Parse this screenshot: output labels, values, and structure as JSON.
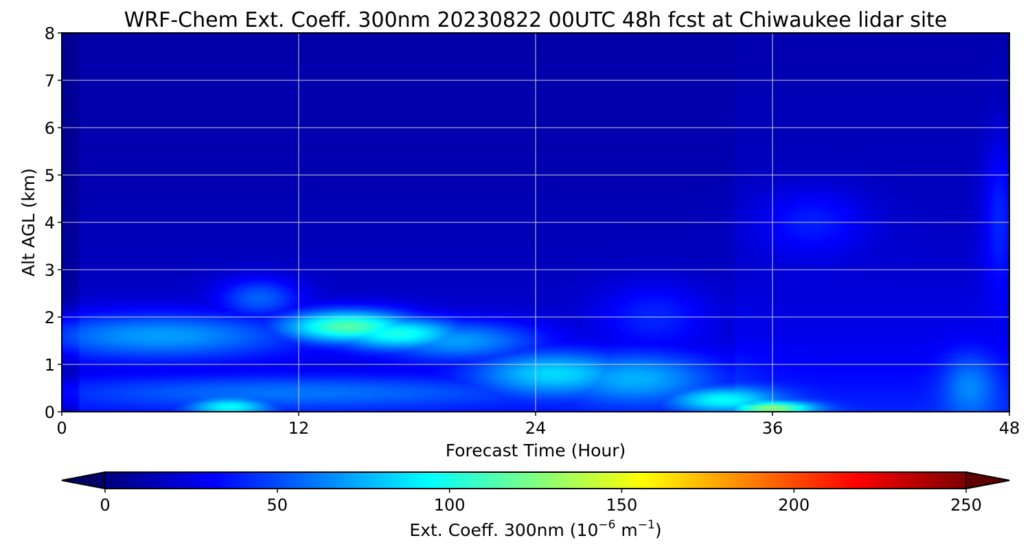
{
  "chart_data": {
    "type": "heatmap",
    "title": "WRF-Chem Ext. Coeff. 300nm  20230822 00UTC 48h fcst at Chiwaukee lidar site",
    "xlabel": "Forecast Time (Hour)",
    "ylabel": "Alt AGL (km)",
    "xlim": [
      0,
      48
    ],
    "ylim": [
      0,
      8
    ],
    "x_ticks": [
      "0",
      "12",
      "24",
      "36",
      "48"
    ],
    "y_ticks": [
      "0",
      "1",
      "2",
      "3",
      "4",
      "5",
      "6",
      "7",
      "8"
    ],
    "grid": true,
    "colormap": "jet",
    "colorbar": {
      "label_main": "Ext. Coeff. 300nm  (10",
      "label_exp1": "−6",
      "label_mid": " m",
      "label_exp2": "−1",
      "label_end": ")",
      "range": [
        0,
        250
      ],
      "extend": "both",
      "ticks": [
        "0",
        "50",
        "100",
        "150",
        "200",
        "250"
      ]
    },
    "features": [
      {
        "x": 5,
        "y": 1.6,
        "value": 70,
        "sx": 5,
        "sy": 0.35
      },
      {
        "x": 14.5,
        "y": 1.8,
        "value": 115,
        "sx": 2.5,
        "sy": 0.25
      },
      {
        "x": 17,
        "y": 1.65,
        "value": 100,
        "sx": 2.5,
        "sy": 0.25
      },
      {
        "x": 20,
        "y": 1.5,
        "value": 70,
        "sx": 3,
        "sy": 0.3
      },
      {
        "x": 10,
        "y": 2.4,
        "value": 55,
        "sx": 1.5,
        "sy": 0.3
      },
      {
        "x": 12,
        "y": 0.4,
        "value": 60,
        "sx": 9,
        "sy": 0.25
      },
      {
        "x": 8.5,
        "y": 0.1,
        "value": 95,
        "sx": 1.5,
        "sy": 0.15
      },
      {
        "x": 25,
        "y": 0.8,
        "value": 85,
        "sx": 3,
        "sy": 0.35
      },
      {
        "x": 29,
        "y": 0.7,
        "value": 75,
        "sx": 3,
        "sy": 0.4
      },
      {
        "x": 33.5,
        "y": 0.25,
        "value": 95,
        "sx": 2,
        "sy": 0.2
      },
      {
        "x": 36,
        "y": 0.08,
        "value": 130,
        "sx": 1.5,
        "sy": 0.1
      },
      {
        "x": 38,
        "y": 4.0,
        "value": 38,
        "sx": 2,
        "sy": 0.5
      },
      {
        "x": 30,
        "y": 2.0,
        "value": 40,
        "sx": 2,
        "sy": 0.5
      },
      {
        "x": 47.5,
        "y": 4.0,
        "value": 40,
        "sx": 0.6,
        "sy": 1.2
      },
      {
        "x": 46,
        "y": 0.5,
        "value": 65,
        "sx": 1,
        "sy": 0.5
      }
    ]
  }
}
